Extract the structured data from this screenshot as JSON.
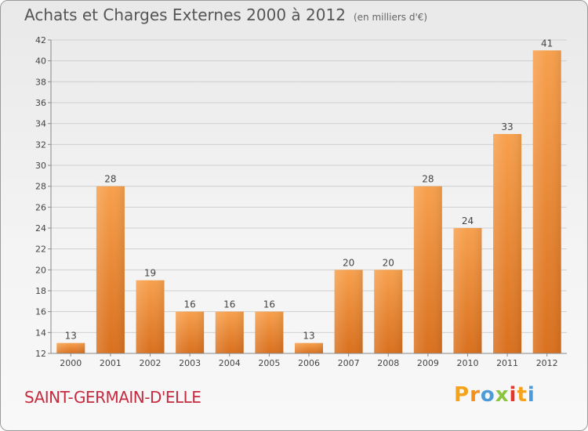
{
  "header": {
    "title": "Achats et Charges Externes 2000 à 2012",
    "subtitle": "(en milliers d'€)"
  },
  "footer": {
    "commune": "SAINT-GERMAIN-D'ELLE",
    "brand": "Proxiti"
  },
  "colors": {
    "bar_light": "#f7a04d",
    "bar_dark": "#d9701e",
    "commune_text": "#c72a3e"
  },
  "chart_data": {
    "type": "bar",
    "categories": [
      "2000",
      "2001",
      "2002",
      "2003",
      "2004",
      "2005",
      "2006",
      "2007",
      "2008",
      "2009",
      "2010",
      "2011",
      "2012"
    ],
    "values": [
      13,
      28,
      19,
      16,
      16,
      16,
      13,
      20,
      20,
      28,
      24,
      33,
      41
    ],
    "title": "Achats et Charges Externes 2000 à 2012",
    "subtitle": "(en milliers d'€)",
    "xlabel": "",
    "ylabel": "",
    "ylim": [
      12,
      42
    ],
    "yticks": [
      12,
      14,
      16,
      18,
      20,
      22,
      24,
      26,
      28,
      30,
      32,
      34,
      36,
      38,
      40,
      42
    ],
    "grid": true,
    "data_labels": true
  }
}
